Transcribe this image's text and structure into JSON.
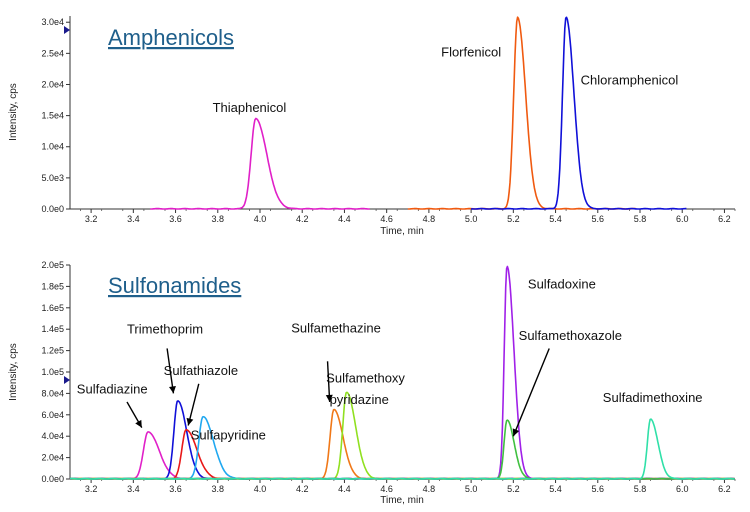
{
  "chart_data": [
    {
      "type": "line",
      "title": "Amphenicols",
      "xlabel": "Time, min",
      "ylabel": "Intensity, cps",
      "xlim": [
        3.1,
        6.25
      ],
      "ylim": [
        0,
        31000
      ],
      "x_ticks": [
        3.2,
        3.4,
        3.6,
        3.8,
        4.0,
        4.2,
        4.4,
        4.6,
        4.8,
        5.0,
        5.2,
        5.4,
        5.6,
        5.8,
        6.0,
        6.2
      ],
      "x_tick_labels": [
        "3.2",
        "3.4",
        "3.6",
        "3.8",
        "4.0",
        "4.2",
        "4.4",
        "4.6",
        "4.8",
        "5.0",
        "5.2",
        "5.4",
        "5.6",
        "5.8",
        "6.0",
        "6.2"
      ],
      "y_ticks": [
        0,
        5000,
        10000,
        15000,
        20000,
        25000,
        30000
      ],
      "y_tick_labels": [
        "0.0e0",
        "5.0e3",
        "1.0e4",
        "1.5e4",
        "2.0e4",
        "2.5e4",
        "3.0e4"
      ],
      "grid": false,
      "series": [
        {
          "name": "Thiaphenicol",
          "color": "#e020c8",
          "rt": 3.98,
          "height": 14500,
          "width": 0.022,
          "tail": 0.03,
          "range": [
            3.48,
            4.52
          ]
        },
        {
          "name": "Florfenicol",
          "color": "#f05a10",
          "rt": 5.22,
          "height": 30800,
          "width": 0.018,
          "tail": 0.02,
          "range": [
            4.7,
            5.78
          ]
        },
        {
          "name": "Chloramphenicol",
          "color": "#1010d8",
          "rt": 5.45,
          "height": 30800,
          "width": 0.017,
          "tail": 0.02,
          "range": [
            5.0,
            6.02
          ]
        }
      ],
      "labels": [
        {
          "text": "Thiaphenicol",
          "at": [
            3.95,
            15600
          ]
        },
        {
          "text": "Florfenicol",
          "at": [
            5.0,
            24500
          ]
        },
        {
          "text": "Chloramphenicol",
          "at": [
            5.75,
            20000
          ]
        }
      ]
    },
    {
      "type": "line",
      "title": "Sulfonamides",
      "xlabel": "Time, min",
      "ylabel": "Intensity, cps",
      "xlim": [
        3.1,
        6.25
      ],
      "ylim": [
        0,
        200000
      ],
      "x_ticks": [
        3.2,
        3.4,
        3.6,
        3.8,
        4.0,
        4.2,
        4.4,
        4.6,
        4.8,
        5.0,
        5.2,
        5.4,
        5.6,
        5.8,
        6.0,
        6.2
      ],
      "x_tick_labels": [
        "3.2",
        "3.4",
        "3.6",
        "3.8",
        "4.0",
        "4.2",
        "4.4",
        "4.6",
        "4.8",
        "5.0",
        "5.2",
        "5.4",
        "5.6",
        "5.8",
        "6.0",
        "6.2"
      ],
      "y_ticks": [
        0,
        20000,
        40000,
        60000,
        80000,
        100000,
        120000,
        140000,
        160000,
        180000,
        200000
      ],
      "y_tick_labels": [
        "0.0e0",
        "2.0e4",
        "4.0e4",
        "6.0e4",
        "8.0e4",
        "1.0e5",
        "1.2e5",
        "1.4e5",
        "1.6e5",
        "1.8e5",
        "2.0e5"
      ],
      "grid": false,
      "series": [
        {
          "name": "Sulfadiazine",
          "color": "#e020c8",
          "rt": 3.47,
          "height": 44000,
          "width": 0.022,
          "tail": 0.03,
          "range": [
            3.1,
            6.25
          ]
        },
        {
          "name": "Trimethoprim",
          "color": "#1010d8",
          "rt": 3.61,
          "height": 73000,
          "width": 0.018,
          "tail": 0.025,
          "range": [
            3.1,
            6.25
          ]
        },
        {
          "name": "Sulfathiazole",
          "color": "#e81818",
          "rt": 3.65,
          "height": 46000,
          "width": 0.02,
          "tail": 0.03,
          "range": [
            3.1,
            6.25
          ]
        },
        {
          "name": "Sulfapyridine",
          "color": "#20a8f0",
          "rt": 3.73,
          "height": 58000,
          "width": 0.02,
          "tail": 0.03,
          "range": [
            3.1,
            6.25
          ]
        },
        {
          "name": "Sulfamethazine",
          "color": "#f07818",
          "rt": 4.35,
          "height": 65000,
          "width": 0.018,
          "tail": 0.025,
          "range": [
            3.1,
            6.25
          ]
        },
        {
          "name": "Sulfamethoxy pyridazine",
          "color": "#90e020",
          "rt": 4.41,
          "height": 81000,
          "width": 0.018,
          "tail": 0.025,
          "range": [
            3.1,
            6.25
          ]
        },
        {
          "name": "Sulfadoxine",
          "color": "#a020e8",
          "rt": 5.17,
          "height": 199000,
          "width": 0.013,
          "tail": 0.02,
          "range": [
            3.1,
            6.25
          ]
        },
        {
          "name": "Sulfamethoxazole",
          "color": "#40c040",
          "rt": 5.17,
          "height": 55000,
          "width": 0.014,
          "tail": 0.02,
          "range": [
            3.1,
            6.25
          ]
        },
        {
          "name": "Sulfadimethoxine",
          "color": "#30e0a8",
          "rt": 5.85,
          "height": 56000,
          "width": 0.015,
          "tail": 0.02,
          "range": [
            3.1,
            6.25
          ]
        }
      ],
      "labels": [
        {
          "text": "Sulfadiazine",
          "at": [
            3.3,
            80000
          ]
        },
        {
          "text": "Trimethoprim",
          "at": [
            3.55,
            136000
          ]
        },
        {
          "text": "Sulfathiazole",
          "at": [
            3.72,
            97000
          ]
        },
        {
          "text": "Sulfapyridine",
          "at": [
            3.85,
            37000
          ]
        },
        {
          "text": "Sulfamethazine",
          "at": [
            4.36,
            137000
          ]
        },
        {
          "text": "Sulfamethoxy",
          "at": [
            4.5,
            90000
          ]
        },
        {
          "text": "pyridazine",
          "at": [
            4.47,
            70000
          ]
        },
        {
          "text": "Sulfadoxine",
          "at": [
            5.43,
            178000
          ]
        },
        {
          "text": "Sulfamethoxazole",
          "at": [
            5.47,
            130000
          ]
        },
        {
          "text": "Sulfadimethoxine",
          "at": [
            5.86,
            72000
          ]
        }
      ],
      "arrows": [
        {
          "name": "sulfadiazine",
          "from": [
            3.37,
            72000
          ],
          "to": [
            3.44,
            48000
          ]
        },
        {
          "name": "trimethoprim",
          "from": [
            3.56,
            122000
          ],
          "to": [
            3.59,
            80000
          ]
        },
        {
          "name": "sulfathiazole",
          "from": [
            3.71,
            89000
          ],
          "to": [
            3.66,
            50000
          ]
        },
        {
          "name": "sulfamethazine",
          "from": [
            4.32,
            110000
          ],
          "to": [
            4.33,
            72000
          ]
        },
        {
          "name": "sulfamethoxazole",
          "from": [
            5.37,
            122000
          ],
          "to": [
            5.2,
            40000
          ]
        }
      ]
    }
  ]
}
